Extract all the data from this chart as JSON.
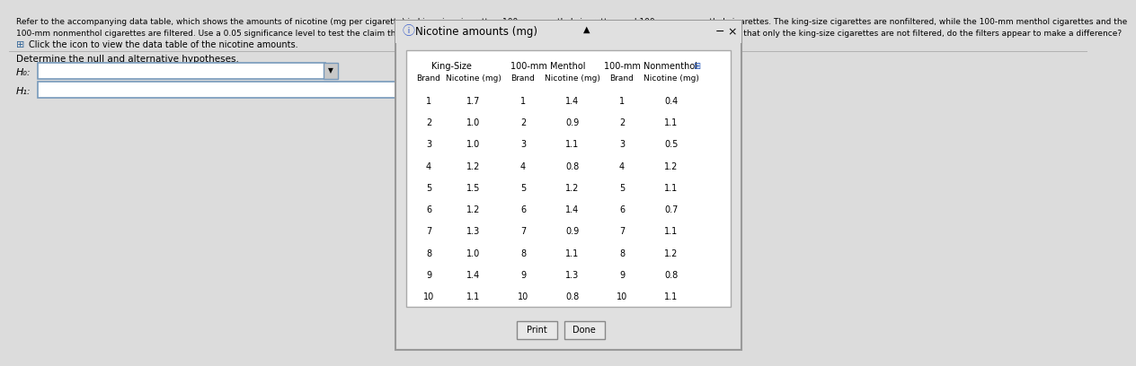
{
  "title_line1": "Refer to the accompanying data table, which shows the amounts of nicotine (mg per cigarette) in king-size cigarettes, 100-mm menthol cigarettes, and 100-mm nonmenthol cigarettes. The king-size cigarettes are nonfiltered, while the 100-mm menthol cigarettes and the",
  "title_line2": "100-mm nonmenthol cigarettes are filtered. Use a 0.05 significance level to test the claim that the three categories of cigarettes yield the same mean amount of nicotine. Given that only the king-size cigarettes are not filtered, do the filters appear to make a difference?",
  "click_text": "Click the icon to view the data table of the nicotine amounts.",
  "determine_text": "Determine the null and alternative hypotheses.",
  "h0_label": "H₀:",
  "h1_label": "H₁:",
  "dialog_title": "Nicotine amounts (mg)",
  "col_headers": [
    "King-Size",
    "100-mm Menthol",
    "100-mm Nonmenthol"
  ],
  "sub_headers": [
    "Brand",
    "Nicotine (mg)",
    "Brand",
    "Nicotine (mg)",
    "Brand",
    "Nicotine (mg)"
  ],
  "king_size": [
    1.7,
    1.0,
    1.0,
    1.2,
    1.5,
    1.2,
    1.3,
    1.0,
    1.4,
    1.1
  ],
  "menthol": [
    1.4,
    0.9,
    1.1,
    0.8,
    1.2,
    1.4,
    0.9,
    1.1,
    1.3,
    0.8
  ],
  "nonmenthol": [
    0.4,
    1.1,
    0.5,
    1.2,
    1.1,
    0.7,
    1.1,
    1.2,
    0.8,
    1.1
  ],
  "brands": [
    1,
    2,
    3,
    4,
    5,
    6,
    7,
    8,
    9,
    10
  ],
  "bg_color": "#dcdcdc",
  "dialog_bg": "#f0f0f0",
  "content_bg": "#ffffff",
  "print_btn": "Print",
  "done_btn": "Done"
}
